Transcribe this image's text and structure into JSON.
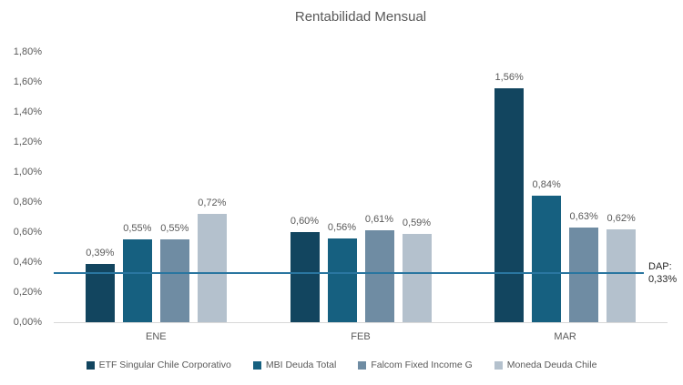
{
  "chart_data": {
    "type": "bar",
    "title": "Rentabilidad Mensual",
    "categories": [
      "ENE",
      "FEB",
      "MAR"
    ],
    "series": [
      {
        "name": "ETF Singular Chile Corporativo",
        "color": "#12455f",
        "values": [
          0.39,
          0.6,
          1.56
        ],
        "labels": [
          "0,39%",
          "0,60%",
          "1,56%"
        ]
      },
      {
        "name": "MBI Deuda Total",
        "color": "#166080",
        "values": [
          0.55,
          0.56,
          0.84
        ],
        "labels": [
          "0,55%",
          "0,56%",
          "0,84%"
        ]
      },
      {
        "name": "Falcom Fixed Income G",
        "color": "#6f8ca3",
        "values": [
          0.55,
          0.61,
          0.63
        ],
        "labels": [
          "0,55%",
          "0,61%",
          "0,63%"
        ]
      },
      {
        "name": "Moneda Deuda Chile",
        "color": "#b4c1cd",
        "values": [
          0.72,
          0.59,
          0.62
        ],
        "labels": [
          "0,72%",
          "0,59%",
          "0,62%"
        ]
      }
    ],
    "y_axis": {
      "min": 0,
      "max": 1.8,
      "step": 0.2,
      "tick_labels": [
        "0,00%",
        "0,20%",
        "0,40%",
        "0,60%",
        "0,80%",
        "1,00%",
        "1,20%",
        "1,40%",
        "1,60%",
        "1,80%"
      ]
    },
    "reference_line": {
      "value": 0.33,
      "color": "#2a76a0",
      "label_line1": "DAP:",
      "label_line2": "0,33%"
    },
    "grid": false,
    "legend_position": "bottom"
  }
}
